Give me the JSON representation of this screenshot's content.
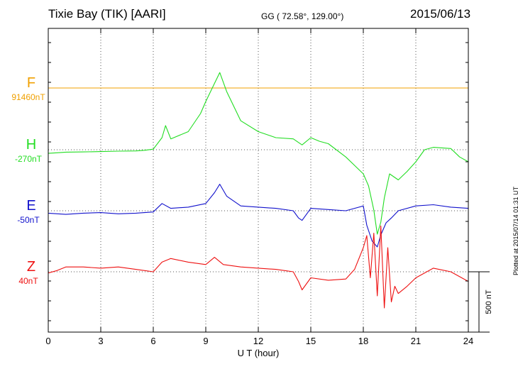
{
  "header": {
    "title": "Tixie Bay (TIK)  [AARI]",
    "coords": "GG ( 72.58°, 129.00°)",
    "date": "2015/06/13"
  },
  "footer": {
    "stamp": "Plotted at 2015/07/14 01:31  UT"
  },
  "chart_data": {
    "type": "line",
    "title": "Tixie Bay (TIK)  [AARI]",
    "xlabel": "U T (hour)",
    "ylabel": "",
    "xlim": [
      0,
      24
    ],
    "xticks": [
      0,
      3,
      6,
      9,
      12,
      15,
      18,
      21,
      24
    ],
    "scale_bar": {
      "label": "500 nT",
      "value": 500
    },
    "grid": true,
    "series": [
      {
        "name": "F",
        "baseline": "91460nT",
        "color": "#f0a000",
        "x": [
          0,
          24
        ],
        "y": [
          0,
          0
        ]
      },
      {
        "name": "H",
        "baseline": "-270nT",
        "color": "#22dd22",
        "x": [
          0,
          0.5,
          1,
          2,
          3,
          4,
          5,
          5.5,
          6,
          6.5,
          6.7,
          7,
          8,
          8.7,
          9,
          9.5,
          9.8,
          10.2,
          11,
          12,
          13,
          14,
          14.3,
          14.5,
          15,
          15.5,
          16,
          17,
          17.5,
          18,
          18.3,
          18.6,
          18.8,
          19.0,
          19.2,
          19.5,
          20,
          20.5,
          21,
          21.5,
          22,
          23,
          23.5,
          24
        ],
        "y": [
          -30,
          -25,
          -20,
          -18,
          -15,
          -12,
          -10,
          -5,
          5,
          100,
          200,
          90,
          150,
          300,
          400,
          550,
          640,
          480,
          240,
          150,
          100,
          90,
          60,
          40,
          100,
          70,
          50,
          -60,
          -130,
          -200,
          -300,
          -500,
          -700,
          -600,
          -400,
          -200,
          -250,
          -180,
          -100,
          0,
          20,
          10,
          -60,
          -100
        ]
      },
      {
        "name": "E",
        "baseline": "-50nT",
        "color": "#1111cc",
        "x": [
          0,
          1,
          2,
          3,
          4,
          5,
          6,
          6.5,
          7,
          8,
          9,
          9.5,
          9.8,
          10.2,
          11,
          12,
          13,
          14,
          14.3,
          14.5,
          15,
          16,
          17,
          18,
          18.2,
          18.5,
          18.8,
          19,
          19.3,
          19.6,
          20,
          21,
          22,
          23,
          24
        ],
        "y": [
          -20,
          -30,
          -20,
          -15,
          -25,
          -20,
          -10,
          60,
          20,
          30,
          60,
          150,
          220,
          120,
          40,
          30,
          20,
          0,
          -60,
          -80,
          20,
          10,
          0,
          40,
          -120,
          -250,
          -300,
          -200,
          -100,
          -60,
          0,
          40,
          50,
          30,
          20
        ]
      },
      {
        "name": "Z",
        "baseline": "40nT",
        "color": "#ee1111",
        "x": [
          0,
          0.5,
          1,
          2,
          3,
          4,
          5,
          6,
          6.5,
          7,
          8,
          9,
          9.5,
          10,
          11,
          12,
          13,
          14,
          14.3,
          14.5,
          15,
          16,
          17,
          17.5,
          18,
          18.2,
          18.4,
          18.6,
          18.8,
          19.0,
          19.2,
          19.4,
          19.6,
          19.8,
          20,
          20.5,
          21,
          22,
          23,
          24
        ],
        "y": [
          -10,
          10,
          40,
          40,
          30,
          40,
          20,
          0,
          80,
          110,
          80,
          60,
          120,
          60,
          40,
          30,
          20,
          0,
          -80,
          -150,
          -50,
          -70,
          -60,
          20,
          200,
          300,
          -50,
          320,
          -200,
          380,
          -300,
          200,
          -250,
          -120,
          -180,
          -120,
          -50,
          30,
          0,
          -80
        ]
      }
    ]
  }
}
